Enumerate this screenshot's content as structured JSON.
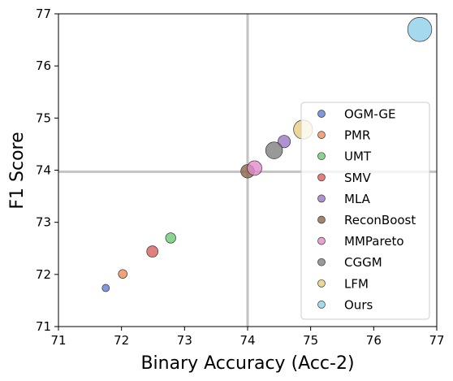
{
  "chart_data": {
    "type": "scatter",
    "title": "",
    "xlabel": "Binary Accuracy (Acc-2)",
    "ylabel": "F1 Score",
    "xlim": [
      71,
      77
    ],
    "ylim": [
      71,
      77
    ],
    "xticks": [
      "71",
      "72",
      "73",
      "74",
      "75",
      "76",
      "77"
    ],
    "yticks": [
      "71",
      "72",
      "73",
      "74",
      "75",
      "76",
      "77"
    ],
    "grid": false,
    "reference_lines": {
      "x": 74.0,
      "y": 73.97
    },
    "legend_position": "right",
    "series": [
      {
        "name": "OGM-GE",
        "color": "#5f7fd1",
        "x": 71.75,
        "y": 71.74,
        "size": 1.0
      },
      {
        "name": "PMR",
        "color": "#ee8c5e",
        "x": 72.02,
        "y": 72.01,
        "size": 1.2
      },
      {
        "name": "UMT",
        "color": "#6acc72",
        "x": 72.78,
        "y": 72.7,
        "size": 1.4
      },
      {
        "name": "SMV",
        "color": "#d95f5f",
        "x": 72.49,
        "y": 72.44,
        "size": 1.55
      },
      {
        "name": "MLA",
        "color": "#9c77c6",
        "x": 74.58,
        "y": 74.55,
        "size": 1.7
      },
      {
        "name": "ReconBoost",
        "color": "#8c6648",
        "x": 74.0,
        "y": 73.98,
        "size": 1.85
      },
      {
        "name": "MMPareto",
        "color": "#e38bcc",
        "x": 74.11,
        "y": 74.04,
        "size": 2.0
      },
      {
        "name": "CGGM",
        "color": "#7f7f7f",
        "x": 74.42,
        "y": 74.38,
        "size": 2.3
      },
      {
        "name": "LFM",
        "color": "#e7cd7e",
        "x": 74.88,
        "y": 74.78,
        "size": 2.6
      },
      {
        "name": "Ours",
        "color": "#8fcfea",
        "x": 76.73,
        "y": 76.7,
        "size": 3.3
      }
    ]
  }
}
